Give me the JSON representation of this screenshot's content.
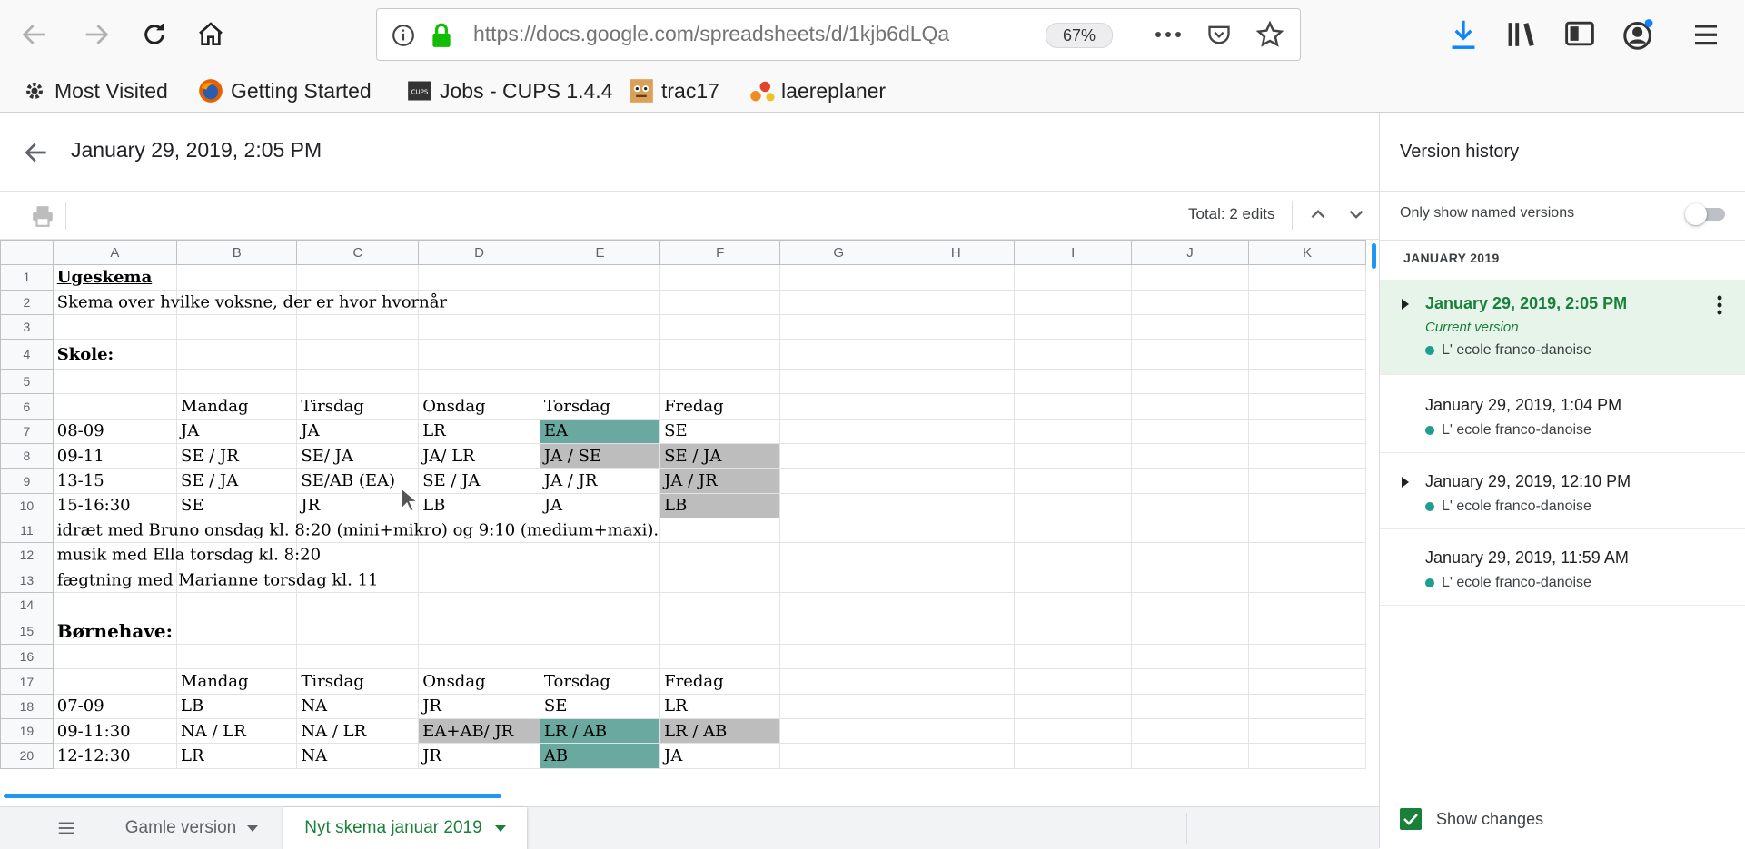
{
  "browser": {
    "url": "https://docs.google.com/spreadsheets/d/1kjb6dLQa",
    "zoom": "67%",
    "bookmarks": [
      "Most Visited",
      "Getting Started",
      "Jobs - CUPS 1.4.4",
      "trac17",
      "laereplaner"
    ]
  },
  "header": {
    "title": "January 29, 2019, 2:05 PM",
    "total_edits": "Total: 2 edits"
  },
  "grid": {
    "columns": [
      "A",
      "B",
      "C",
      "D",
      "E",
      "F",
      "G",
      "H",
      "I",
      "J",
      "K"
    ],
    "rows": [
      "1",
      "2",
      "3",
      "4",
      "5",
      "6",
      "7",
      "8",
      "9",
      "10",
      "11",
      "12",
      "13",
      "14",
      "15",
      "16",
      "17",
      "18",
      "19",
      "20"
    ],
    "r1": "Ugeskema",
    "r2": "Skema over hvilke voksne, der er hvor hvornår",
    "r4": "Skole:",
    "r6": [
      "",
      "Mandag",
      "Tirsdag",
      "Onsdag",
      "Torsdag",
      "Fredag"
    ],
    "r7": [
      "08-09",
      "JA",
      "JA",
      "LR",
      "EA",
      "SE"
    ],
    "r8": [
      "09-11",
      "SE / JR",
      "SE/ JA",
      "JA/ LR",
      "JA / SE",
      "SE / JA"
    ],
    "r9": [
      "13-15",
      "SE / JA",
      "SE/AB (EA)",
      "SE / JA",
      "JA / JR",
      "JA / JR"
    ],
    "r10": [
      "15-16:30",
      "SE",
      "JR",
      "LB",
      "JA",
      "LB"
    ],
    "r11": "idræt med Bruno onsdag kl. 8:20 (mini+mikro) og 9:10 (medium+maxi).",
    "r12": "musik med Ella torsdag kl. 8:20",
    "r13": "fægtning med Marianne torsdag kl. 11",
    "r15": "Børnehave:",
    "r17": [
      "",
      "Mandag",
      "Tirsdag",
      "Onsdag",
      "Torsdag",
      "Fredag"
    ],
    "r18": [
      "07-09",
      "LB",
      "NA",
      "JR",
      "SE",
      "LR"
    ],
    "r19": [
      "09-11:30",
      "NA / LR",
      "NA / LR",
      "EA+AB/ JR",
      "LR / AB",
      "LR / AB"
    ],
    "r20": [
      "12-12:30",
      "LR",
      "NA",
      "JR",
      "AB",
      "JA"
    ]
  },
  "tabs": {
    "inactive": "Gamle version",
    "active": "Nyt skema januar 2019"
  },
  "panel": {
    "title": "Version history",
    "named_toggle_label": "Only show named versions",
    "month": "JANUARY 2019",
    "versions": [
      {
        "date": "January 29, 2019, 2:05 PM",
        "sub": "Current version",
        "author": "L' ecole franco-danoise"
      },
      {
        "date": "January 29, 2019, 1:04 PM",
        "author": "L' ecole franco-danoise"
      },
      {
        "date": "January 29, 2019, 12:10 PM",
        "author": "L' ecole franco-danoise"
      },
      {
        "date": "January 29, 2019, 11:59 AM",
        "author": "L' ecole franco-danoise"
      }
    ],
    "show_changes_label": "Show changes",
    "show_changes_checked": true
  },
  "colors": {
    "teal": "#6aa9a0",
    "gray": "#bdbdbd",
    "green": "#188038",
    "accent_blue": "#0a84ff"
  }
}
